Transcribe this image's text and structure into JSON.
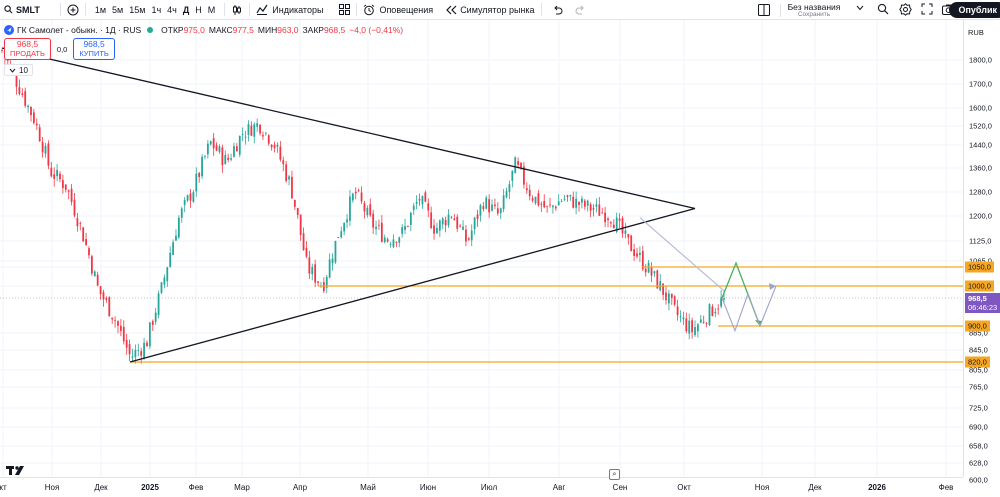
{
  "toolbar": {
    "symbol": "SMLT",
    "timeframes": [
      "1м",
      "5м",
      "15м",
      "1ч",
      "4ч",
      "Д",
      "Н",
      "М"
    ],
    "active_timeframe": "Д",
    "indicators_label": "Индикаторы",
    "alerts_label": "Оповещения",
    "replay_label": "Симулятор рынка",
    "layout_name": "Без названия",
    "layout_save": "Сохранить",
    "publish_label": "Опублик"
  },
  "legend": {
    "title": "ГК Самолет - обыкн. · 1Д · RUS",
    "open_label": "ОТКР",
    "open": "975,0",
    "high_label": "МАКС",
    "high": "977,5",
    "low_label": "МИН",
    "low": "963,0",
    "close_label": "ЗАКР",
    "close": "968,5",
    "change": "−4,0 (−0,41%)"
  },
  "trade": {
    "sell_price": "968,5",
    "sell_label": "ПРОДАТЬ",
    "spread": "0,0",
    "buy_price": "968,5",
    "buy_label": "КУПИТЬ",
    "volume_count": "10"
  },
  "price_axis": {
    "currency": "RUB",
    "ticks": [
      "1800,0",
      "1700,0",
      "1600,0",
      "1520,0",
      "1440,0",
      "1360,0",
      "1280,0",
      "1200,0",
      "1125,0",
      "1065,0",
      "1050,0",
      "1000,0",
      "885,0",
      "845,0",
      "805,0",
      "765,0",
      "725,0",
      "690,0",
      "658,0",
      "628,0",
      "600,0"
    ],
    "levels": [
      {
        "text": "1050,0",
        "price": 1050
      },
      {
        "text": "1000,0",
        "price": 1000
      },
      {
        "text": "900,0",
        "price": 900
      },
      {
        "text": "820,0",
        "price": 820
      }
    ],
    "last_price": "968,5",
    "countdown": "06:46:23"
  },
  "time_axis": {
    "ticks": [
      {
        "text": "кт",
        "year": false
      },
      {
        "text": "Ноя",
        "year": false
      },
      {
        "text": "Дек",
        "year": false
      },
      {
        "text": "2025",
        "year": true
      },
      {
        "text": "Фев",
        "year": false
      },
      {
        "text": "Мар",
        "year": false
      },
      {
        "text": "Апр",
        "year": false
      },
      {
        "text": "Май",
        "year": false
      },
      {
        "text": "Июн",
        "year": false
      },
      {
        "text": "Июл",
        "year": false
      },
      {
        "text": "Авг",
        "year": false
      },
      {
        "text": "Сен",
        "year": false
      },
      {
        "text": "Окт",
        "year": false
      },
      {
        "text": "Ноя",
        "year": false
      },
      {
        "text": "Дек",
        "year": false
      },
      {
        "text": "2026",
        "year": true
      },
      {
        "text": "Фев",
        "year": false
      }
    ]
  },
  "colors": {
    "up": "#26a69a",
    "down": "#f23645",
    "level": "#f5a623",
    "trendline": "#131722",
    "last": "#7e57c2",
    "forecast_up": "#4caf50",
    "forecast_alt": "#a0a4c8"
  },
  "icons": {
    "add_symbol": "plus-circle-icon",
    "bar_style": "candles-icon",
    "indicators": "indicators-icon",
    "templates": "grid-icon",
    "alerts": "alarm-clock-icon",
    "replay": "rewind-icon",
    "undo": "undo-icon",
    "redo": "redo-icon",
    "search": "search-icon",
    "settings": "gear-icon",
    "fullscreen": "fullscreen-icon",
    "snapshot": "camera-icon"
  },
  "chart_data": {
    "type": "candlestick",
    "ylim": [
      600,
      1850
    ],
    "x_range": [
      "2024-10",
      "2026-02"
    ],
    "last_close": 968.5,
    "candles_ohlc_anchor_closes": [
      1840,
      1700,
      1550,
      1350,
      1300,
      1150,
      990,
      920,
      830,
      860,
      1000,
      1190,
      1300,
      1450,
      1380,
      1490,
      1530,
      1440,
      1300,
      1050,
      1000,
      1150,
      1280,
      1180,
      1130,
      1150,
      1260,
      1160,
      1210,
      1120,
      1250,
      1200,
      1370,
      1270,
      1220,
      1260,
      1240,
      1220,
      1200,
      1120,
      1060,
      1000,
      930,
      890,
      930,
      968.5
    ],
    "horizontal_levels": [
      1050,
      1000,
      900,
      820
    ],
    "triangle": {
      "upper_from_price": 1850,
      "lower_from_price": 820,
      "apex_price": 1225
    },
    "forecast_paths": [
      [
        968.5,
        1060,
        900
      ],
      [
        968.5,
        890,
        980,
        900,
        1000
      ]
    ]
  }
}
